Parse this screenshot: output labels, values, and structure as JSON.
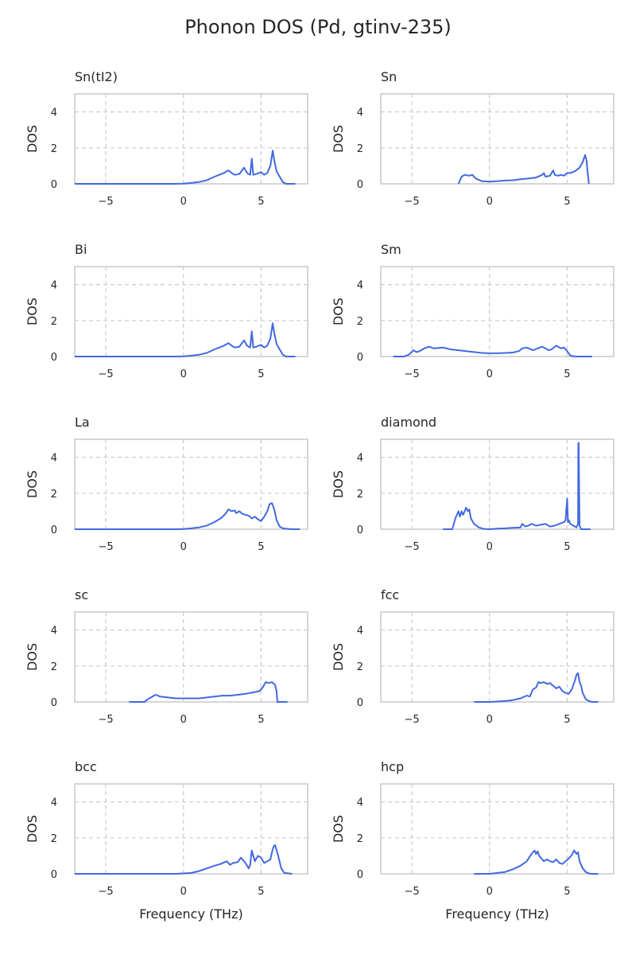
{
  "figure": {
    "title": "Phonon DOS (Pd, gtinv-235)"
  },
  "chart_data": {
    "type": "line",
    "layout": "5x2 grid of subplots",
    "xlabel": "Frequency (THz)",
    "ylabel": "DOS",
    "xlim": [
      -7,
      8
    ],
    "ylim": [
      0,
      5
    ],
    "xticks": [
      -5,
      0,
      5
    ],
    "yticks": [
      0,
      2,
      4
    ],
    "grid": true,
    "grid_style": "dashed",
    "line_color": "#4169e1",
    "panels": [
      {
        "title": "Sn(tI2)",
        "x": [
          -7,
          -1.5,
          -0.5,
          0,
          0.5,
          1.0,
          1.5,
          2.0,
          2.3,
          2.6,
          2.9,
          3.1,
          3.3,
          3.6,
          3.9,
          4.1,
          4.3,
          4.4,
          4.5,
          4.7,
          5.0,
          5.2,
          5.4,
          5.6,
          5.75,
          5.85,
          6.0,
          6.2,
          6.4,
          6.6,
          7.2
        ],
        "values": [
          0,
          0,
          0,
          0.01,
          0.05,
          0.1,
          0.2,
          0.4,
          0.5,
          0.6,
          0.75,
          0.6,
          0.5,
          0.55,
          0.9,
          0.6,
          0.5,
          1.4,
          0.5,
          0.55,
          0.65,
          0.5,
          0.6,
          1.0,
          1.85,
          1.3,
          0.7,
          0.4,
          0.1,
          0,
          0
        ]
      },
      {
        "title": "Sn",
        "x": [
          -2.0,
          -1.8,
          -1.6,
          -1.3,
          -1.1,
          -0.9,
          -0.5,
          0,
          0.5,
          1.0,
          1.5,
          2.0,
          2.5,
          3.0,
          3.4,
          3.5,
          3.6,
          3.9,
          4.1,
          4.2,
          4.4,
          4.6,
          4.8,
          5.0,
          5.2,
          5.5,
          5.8,
          6.0,
          6.15,
          6.25,
          6.3,
          6.4
        ],
        "values": [
          0,
          0.4,
          0.5,
          0.45,
          0.5,
          0.3,
          0.15,
          0.12,
          0.15,
          0.18,
          0.2,
          0.25,
          0.3,
          0.35,
          0.5,
          0.6,
          0.4,
          0.45,
          0.75,
          0.5,
          0.45,
          0.5,
          0.45,
          0.6,
          0.6,
          0.7,
          0.9,
          1.2,
          1.6,
          1.3,
          0.8,
          0
        ]
      },
      {
        "title": "Bi",
        "x": [
          -7,
          -1.5,
          -0.5,
          0,
          0.5,
          1.0,
          1.5,
          2.0,
          2.3,
          2.6,
          2.9,
          3.1,
          3.3,
          3.6,
          3.9,
          4.1,
          4.3,
          4.4,
          4.5,
          4.7,
          5.0,
          5.2,
          5.4,
          5.6,
          5.75,
          5.85,
          6.0,
          6.2,
          6.4,
          6.6,
          7.2
        ],
        "values": [
          0,
          0,
          0,
          0.01,
          0.05,
          0.1,
          0.2,
          0.4,
          0.5,
          0.6,
          0.75,
          0.6,
          0.5,
          0.55,
          0.9,
          0.6,
          0.5,
          1.4,
          0.5,
          0.55,
          0.65,
          0.5,
          0.6,
          1.0,
          1.85,
          1.3,
          0.7,
          0.4,
          0.1,
          0,
          0
        ]
      },
      {
        "title": "Sm",
        "x": [
          -6.2,
          -5.5,
          -5.2,
          -4.9,
          -4.7,
          -4.5,
          -4.2,
          -3.9,
          -3.6,
          -3.3,
          -3.0,
          -2.5,
          -2.0,
          -1.5,
          -1.0,
          -0.5,
          0,
          0.5,
          1.0,
          1.5,
          1.9,
          2.1,
          2.4,
          2.8,
          3.1,
          3.4,
          3.6,
          3.8,
          4.0,
          4.3,
          4.6,
          4.8,
          5.0,
          5.2,
          5.5,
          6.6
        ],
        "values": [
          0,
          0,
          0.1,
          0.35,
          0.25,
          0.3,
          0.45,
          0.55,
          0.45,
          0.48,
          0.5,
          0.4,
          0.35,
          0.3,
          0.25,
          0.2,
          0.18,
          0.18,
          0.2,
          0.22,
          0.3,
          0.45,
          0.5,
          0.35,
          0.45,
          0.55,
          0.45,
          0.35,
          0.4,
          0.6,
          0.45,
          0.5,
          0.3,
          0.05,
          0,
          0
        ]
      },
      {
        "title": "La",
        "x": [
          -7,
          -0.5,
          0,
          0.5,
          1.0,
          1.5,
          2.0,
          2.4,
          2.7,
          2.9,
          3.1,
          3.3,
          3.4,
          3.6,
          3.8,
          4.0,
          4.2,
          4.4,
          4.6,
          4.8,
          5.0,
          5.2,
          5.4,
          5.55,
          5.7,
          5.85,
          6.0,
          6.2,
          6.4,
          6.7,
          7.0,
          7.5
        ],
        "values": [
          0,
          0,
          0.01,
          0.05,
          0.1,
          0.2,
          0.4,
          0.6,
          0.85,
          1.1,
          1.0,
          1.05,
          0.9,
          1.0,
          0.85,
          0.8,
          0.75,
          0.6,
          0.7,
          0.55,
          0.45,
          0.7,
          1.0,
          1.4,
          1.45,
          1.1,
          0.5,
          0.15,
          0.05,
          0.02,
          0,
          0
        ]
      },
      {
        "title": "diamond",
        "x": [
          -3.0,
          -2.4,
          -2.2,
          -2.0,
          -1.9,
          -1.8,
          -1.7,
          -1.6,
          -1.5,
          -1.4,
          -1.3,
          -1.2,
          -1.0,
          -0.7,
          -0.4,
          0,
          0.5,
          1.0,
          1.5,
          2.0,
          2.1,
          2.3,
          2.5,
          2.7,
          3.0,
          3.3,
          3.6,
          3.9,
          4.2,
          4.5,
          4.8,
          4.9,
          5.0,
          5.05,
          5.1,
          5.2,
          5.4,
          5.6,
          5.7,
          5.72,
          5.74,
          5.8,
          5.9,
          6.0,
          6.5
        ],
        "values": [
          0,
          0,
          0.6,
          1.0,
          0.7,
          1.0,
          0.8,
          1.0,
          1.2,
          1.0,
          1.1,
          0.6,
          0.3,
          0.1,
          0.02,
          0,
          0.03,
          0.05,
          0.08,
          0.1,
          0.3,
          0.15,
          0.2,
          0.3,
          0.2,
          0.25,
          0.3,
          0.15,
          0.2,
          0.3,
          0.4,
          0.5,
          1.7,
          0.4,
          0.5,
          0.3,
          0.2,
          0.1,
          0.3,
          4.8,
          4.8,
          0.2,
          0,
          0,
          0
        ]
      },
      {
        "title": "sc",
        "x": [
          -3.5,
          -2.5,
          -2.3,
          -2.0,
          -1.8,
          -1.5,
          -1.0,
          -0.5,
          0,
          0.5,
          1.0,
          1.5,
          2.0,
          2.5,
          3.0,
          3.5,
          4.0,
          4.3,
          4.6,
          4.9,
          5.1,
          5.3,
          5.5,
          5.7,
          5.9,
          6.0,
          6.05,
          6.2,
          6.7
        ],
        "values": [
          0,
          0,
          0.15,
          0.3,
          0.4,
          0.3,
          0.25,
          0.2,
          0.2,
          0.2,
          0.2,
          0.25,
          0.3,
          0.35,
          0.35,
          0.4,
          0.45,
          0.5,
          0.55,
          0.6,
          0.8,
          1.1,
          1.05,
          1.1,
          0.95,
          0.6,
          0,
          0,
          0
        ]
      },
      {
        "title": "fcc",
        "x": [
          -1.0,
          0,
          0.5,
          1.0,
          1.5,
          2.0,
          2.4,
          2.6,
          2.8,
          3.0,
          3.15,
          3.3,
          3.5,
          3.7,
          3.9,
          4.1,
          4.3,
          4.5,
          4.7,
          4.9,
          5.1,
          5.3,
          5.5,
          5.6,
          5.7,
          5.8,
          5.9,
          6.0,
          6.2,
          6.4,
          6.6,
          6.8,
          7.0
        ],
        "values": [
          0,
          0,
          0.02,
          0.05,
          0.1,
          0.2,
          0.35,
          0.3,
          0.7,
          0.8,
          1.1,
          1.05,
          1.1,
          1.0,
          1.05,
          0.9,
          0.75,
          0.85,
          0.6,
          0.5,
          0.45,
          0.7,
          1.2,
          1.5,
          1.6,
          1.1,
          0.9,
          0.5,
          0.15,
          0.05,
          0,
          0,
          0
        ]
      },
      {
        "title": "bcc",
        "x": [
          -7,
          -1.5,
          -0.5,
          0,
          0.5,
          1.0,
          1.5,
          2.0,
          2.4,
          2.8,
          3.0,
          3.2,
          3.5,
          3.7,
          3.9,
          4.0,
          4.2,
          4.3,
          4.4,
          4.6,
          4.8,
          5.0,
          5.2,
          5.4,
          5.6,
          5.7,
          5.8,
          5.9,
          6.1,
          6.3,
          6.5,
          7.0
        ],
        "values": [
          0,
          0,
          0,
          0.02,
          0.05,
          0.15,
          0.3,
          0.45,
          0.55,
          0.7,
          0.5,
          0.6,
          0.65,
          0.9,
          0.7,
          0.6,
          0.3,
          0.5,
          1.3,
          0.7,
          1.0,
          0.9,
          0.6,
          0.7,
          0.8,
          1.2,
          1.5,
          1.6,
          1.0,
          0.3,
          0.05,
          0
        ]
      },
      {
        "title": "hcp",
        "x": [
          -1.0,
          0,
          0.5,
          1.0,
          1.5,
          2.0,
          2.4,
          2.7,
          2.9,
          3.0,
          3.1,
          3.2,
          3.3,
          3.5,
          3.7,
          3.9,
          4.1,
          4.3,
          4.5,
          4.7,
          4.9,
          5.1,
          5.3,
          5.45,
          5.6,
          5.7,
          5.8,
          6.0,
          6.2,
          6.4,
          6.6,
          7.0
        ],
        "values": [
          0,
          0,
          0.05,
          0.1,
          0.25,
          0.45,
          0.7,
          1.1,
          1.3,
          1.1,
          1.25,
          1.0,
          0.9,
          0.7,
          0.8,
          0.7,
          0.65,
          0.8,
          0.6,
          0.55,
          0.7,
          0.85,
          1.05,
          1.3,
          1.1,
          1.2,
          0.7,
          0.3,
          0.1,
          0.02,
          0,
          0
        ]
      }
    ]
  }
}
